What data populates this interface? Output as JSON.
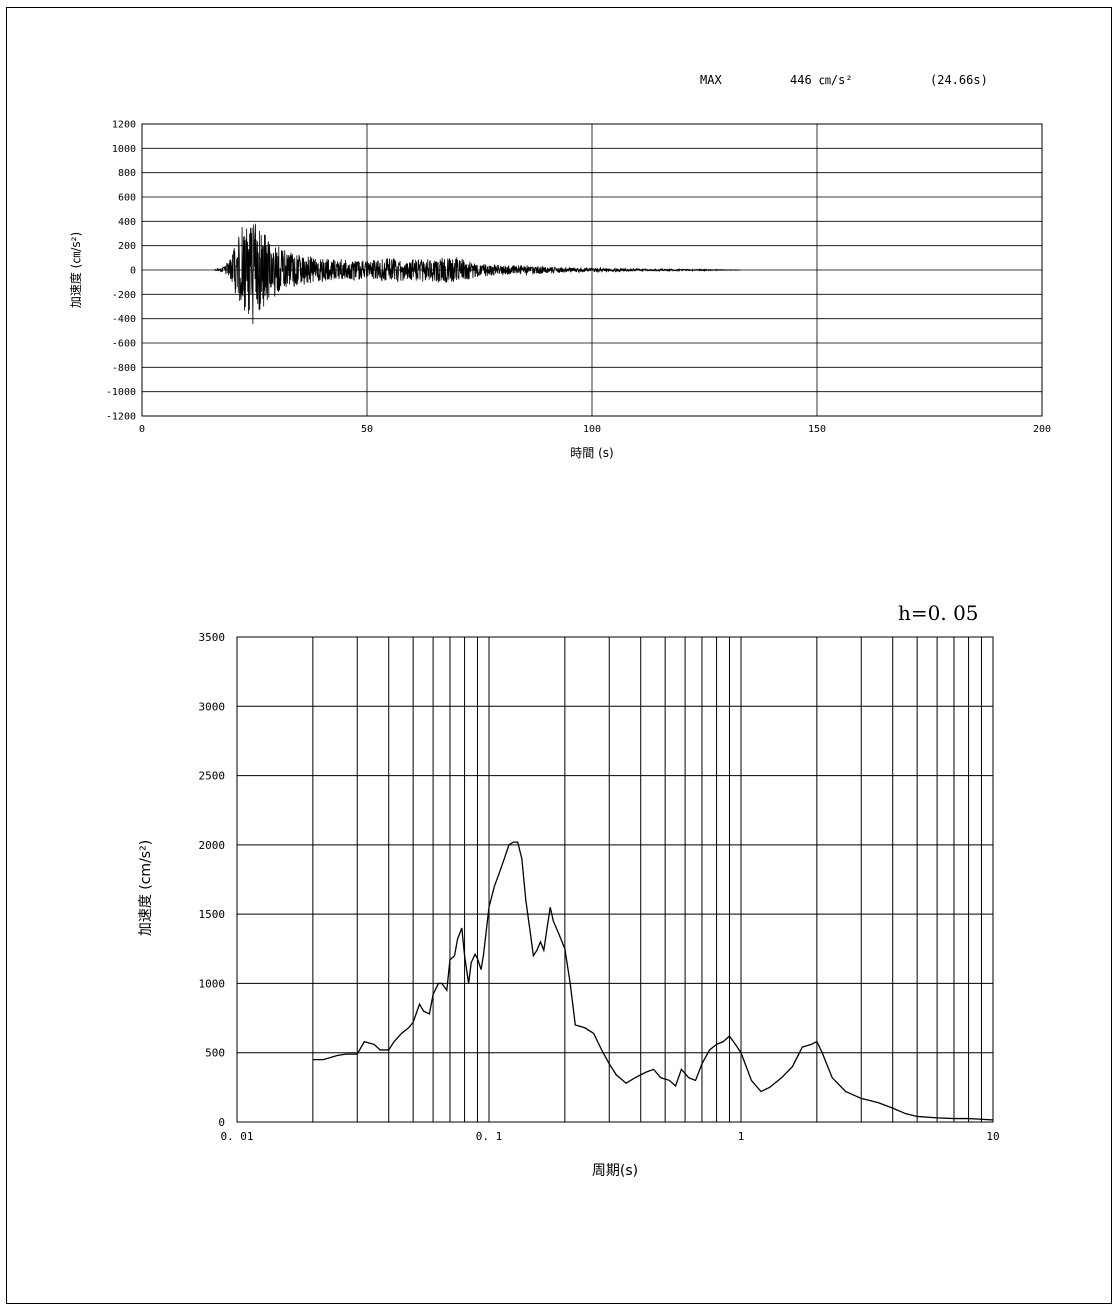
{
  "chart_data": [
    {
      "type": "line",
      "chart_id": "accel-time-history",
      "max_label": "MAX",
      "max_value": "446 ㎝/s²",
      "max_time": "(24.66s)",
      "xlabel": "時間 (s)",
      "ylabel": "加速度 (㎝/s²)",
      "xlim": [
        0,
        200
      ],
      "ylim": [
        -1200,
        1200
      ],
      "xticks": [
        0,
        50,
        100,
        150,
        200
      ],
      "yticks": [
        1200,
        1000,
        800,
        600,
        400,
        200,
        0,
        -200,
        -400,
        -600,
        -800,
        -1000,
        -1200
      ],
      "grid": true,
      "peak": {
        "x": 24.66,
        "y": -446
      },
      "envelope": [
        {
          "t": 16,
          "a": 0
        },
        {
          "t": 18,
          "a": 25
        },
        {
          "t": 20,
          "a": 110
        },
        {
          "t": 21,
          "a": 300
        },
        {
          "t": 22,
          "a": 400
        },
        {
          "t": 24,
          "a": 410
        },
        {
          "t": 24.66,
          "a": 446
        },
        {
          "t": 27,
          "a": 330
        },
        {
          "t": 29,
          "a": 250
        },
        {
          "t": 32,
          "a": 170
        },
        {
          "t": 36,
          "a": 130
        },
        {
          "t": 42,
          "a": 95
        },
        {
          "t": 50,
          "a": 80
        },
        {
          "t": 56,
          "a": 110
        },
        {
          "t": 62,
          "a": 95
        },
        {
          "t": 69,
          "a": 120
        },
        {
          "t": 75,
          "a": 55
        },
        {
          "t": 85,
          "a": 40
        },
        {
          "t": 95,
          "a": 22
        },
        {
          "t": 110,
          "a": 10
        },
        {
          "t": 125,
          "a": 5
        },
        {
          "t": 133,
          "a": 2
        }
      ]
    },
    {
      "type": "line",
      "chart_id": "response-spectrum",
      "damping_label": "h=0. 05",
      "xlabel": "周期(s)",
      "ylabel": "加速度 (cm/s²)",
      "xscale": "log",
      "xlim": [
        0.01,
        10
      ],
      "ylim": [
        0,
        3500
      ],
      "xtick_labels": [
        "0. 01",
        "0. 1",
        "1",
        "10"
      ],
      "yticks": [
        3500,
        3000,
        2500,
        2000,
        1500,
        1000,
        500,
        0
      ],
      "grid": true,
      "series": [
        {
          "x": [
            0.02,
            0.022,
            0.025,
            0.027,
            0.03,
            0.032,
            0.035,
            0.037,
            0.04,
            0.042,
            0.045,
            0.048,
            0.05,
            0.053,
            0.055,
            0.058,
            0.06,
            0.063,
            0.065,
            0.068,
            0.07,
            0.073,
            0.075,
            0.078,
            0.08,
            0.083,
            0.085,
            0.088,
            0.09,
            0.093,
            0.095,
            0.1,
            0.105,
            0.11,
            0.115,
            0.12,
            0.125,
            0.13,
            0.135,
            0.14,
            0.145,
            0.15,
            0.155,
            0.16,
            0.165,
            0.17,
            0.175,
            0.18,
            0.19,
            0.2,
            0.21,
            0.22,
            0.24,
            0.26,
            0.28,
            0.3,
            0.32,
            0.35,
            0.38,
            0.42,
            0.45,
            0.48,
            0.52,
            0.55,
            0.58,
            0.62,
            0.66,
            0.7,
            0.75,
            0.8,
            0.85,
            0.9,
            0.95,
            1.0,
            1.1,
            1.2,
            1.3,
            1.45,
            1.6,
            1.75,
            1.9,
            2.0,
            2.1,
            2.3,
            2.6,
            3.0,
            3.5,
            4.0,
            4.5,
            5.0,
            6.0,
            7.0,
            8.0,
            9.0,
            10.0
          ],
          "y": [
            450,
            450,
            480,
            490,
            490,
            580,
            560,
            520,
            520,
            580,
            640,
            680,
            720,
            850,
            800,
            780,
            920,
            1000,
            1000,
            950,
            1170,
            1200,
            1320,
            1400,
            1200,
            1000,
            1150,
            1210,
            1180,
            1100,
            1200,
            1550,
            1700,
            1800,
            1900,
            2000,
            2020,
            2020,
            1900,
            1600,
            1400,
            1200,
            1240,
            1300,
            1240,
            1400,
            1550,
            1450,
            1350,
            1250,
            1000,
            700,
            680,
            640,
            520,
            420,
            340,
            280,
            320,
            360,
            380,
            320,
            300,
            260,
            380,
            320,
            300,
            420,
            520,
            560,
            580,
            620,
            560,
            500,
            300,
            220,
            250,
            320,
            400,
            540,
            560,
            580,
            500,
            320,
            220,
            170,
            140,
            100,
            60,
            40,
            30,
            25,
            25,
            20,
            15
          ]
        }
      ]
    }
  ]
}
